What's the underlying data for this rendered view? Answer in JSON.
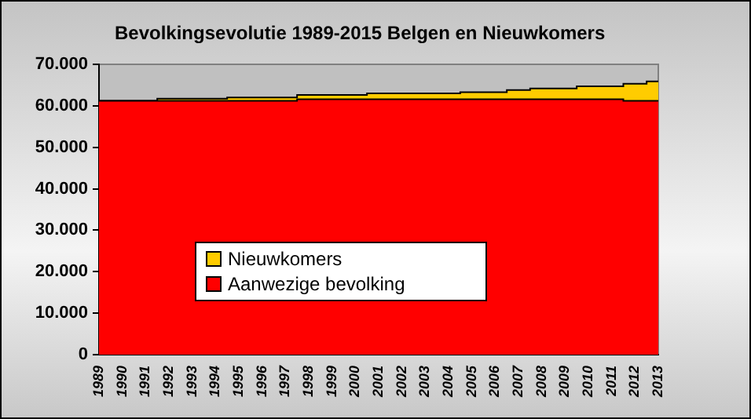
{
  "chart_data": {
    "type": "area",
    "title": "Bevolkingsevolutie 1989-2015 Belgen en Nieuwkomers",
    "stacked": true,
    "categories": [
      "1989",
      "1990",
      "1991",
      "1992",
      "1993",
      "1994",
      "1995",
      "1996",
      "1997",
      "1998",
      "1999",
      "2000",
      "2001",
      "2002",
      "2003",
      "2004",
      "2005",
      "2006",
      "2007",
      "2008",
      "2009",
      "2010",
      "2011",
      "2012",
      "2013"
    ],
    "series": [
      {
        "name": "Aanwezige bevolking",
        "color": "#ff0000",
        "values": [
          61200,
          61200,
          61200,
          61200,
          61200,
          61200,
          61200,
          61200,
          61200,
          61600,
          61600,
          61600,
          61600,
          61600,
          61600,
          61600,
          61600,
          61600,
          61600,
          61600,
          61600,
          61600,
          61600,
          61200,
          61200
        ]
      },
      {
        "name": "Nieuwkomers",
        "color": "#ffcc00",
        "values": [
          0,
          0,
          0,
          500,
          500,
          500,
          800,
          800,
          800,
          1000,
          1000,
          1000,
          1400,
          1400,
          1400,
          1400,
          1700,
          1700,
          2200,
          2600,
          2600,
          3100,
          3100,
          4100,
          4700
        ]
      }
    ],
    "ylim": [
      0,
      70000
    ],
    "yticks": [
      {
        "value": 0,
        "label": "0"
      },
      {
        "value": 10000,
        "label": "10.000"
      },
      {
        "value": 20000,
        "label": "20.000"
      },
      {
        "value": 30000,
        "label": "30.000"
      },
      {
        "value": 40000,
        "label": "40.000"
      },
      {
        "value": 50000,
        "label": "50.000"
      },
      {
        "value": 60000,
        "label": "60.000"
      },
      {
        "value": 70000,
        "label": "70.000"
      }
    ],
    "grid": false,
    "legend": "center"
  }
}
